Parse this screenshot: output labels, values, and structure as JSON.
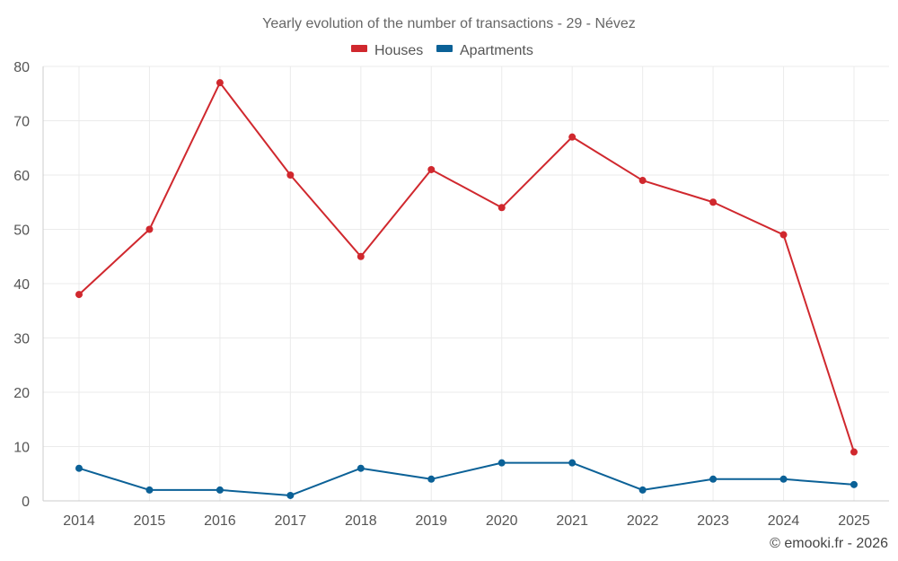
{
  "chart_data": {
    "type": "line",
    "title": "Yearly evolution of the number of transactions - 29 - Névez",
    "categories": [
      "2014",
      "2015",
      "2016",
      "2017",
      "2018",
      "2019",
      "2020",
      "2021",
      "2022",
      "2023",
      "2024",
      "2025"
    ],
    "series": [
      {
        "name": "Houses",
        "color": "#d0282e",
        "values": [
          38,
          50,
          77,
          60,
          45,
          61,
          54,
          67,
          59,
          55,
          49,
          9
        ]
      },
      {
        "name": "Apartments",
        "color": "#0b6197",
        "values": [
          6,
          2,
          2,
          1,
          6,
          4,
          7,
          7,
          2,
          4,
          4,
          3
        ]
      }
    ],
    "yticks": [
      0,
      10,
      20,
      30,
      40,
      50,
      60,
      70,
      80
    ],
    "ylim": [
      0,
      80
    ],
    "xlabel": "",
    "ylabel": "",
    "grid": true,
    "legend_position": "top-center"
  },
  "credit": "© emooki.fr - 2026"
}
